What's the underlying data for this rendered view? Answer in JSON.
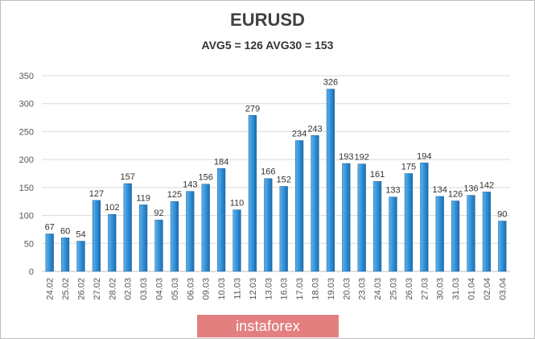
{
  "chart_data": {
    "type": "bar",
    "title": "EURUSD",
    "subtitle": "AVG5 = 126 AVG30 = 153",
    "categories": [
      "24.02",
      "25.02",
      "26.02",
      "27.02",
      "28.02",
      "02.03",
      "03.03",
      "04.03",
      "05.03",
      "06.03",
      "09.03",
      "10.03",
      "11.03",
      "12.03",
      "13.03",
      "16.03",
      "17.03",
      "18.03",
      "19.03",
      "20.03",
      "23.03",
      "24.03",
      "25.03",
      "26.03",
      "27.03",
      "30.03",
      "31.03",
      "01.04",
      "02.04",
      "03.04"
    ],
    "values": [
      67,
      60,
      54,
      127,
      102,
      157,
      119,
      92,
      125,
      143,
      156,
      184,
      110,
      279,
      166,
      152,
      234,
      243,
      326,
      193,
      192,
      161,
      133,
      175,
      194,
      134,
      126,
      136,
      142,
      90
    ],
    "ylim": [
      0,
      350
    ],
    "yticks": [
      0,
      50,
      100,
      150,
      200,
      250,
      300,
      350
    ],
    "grid": true,
    "bar_color": "#2f8ed6",
    "legend": "none"
  },
  "watermark": "instaforex"
}
